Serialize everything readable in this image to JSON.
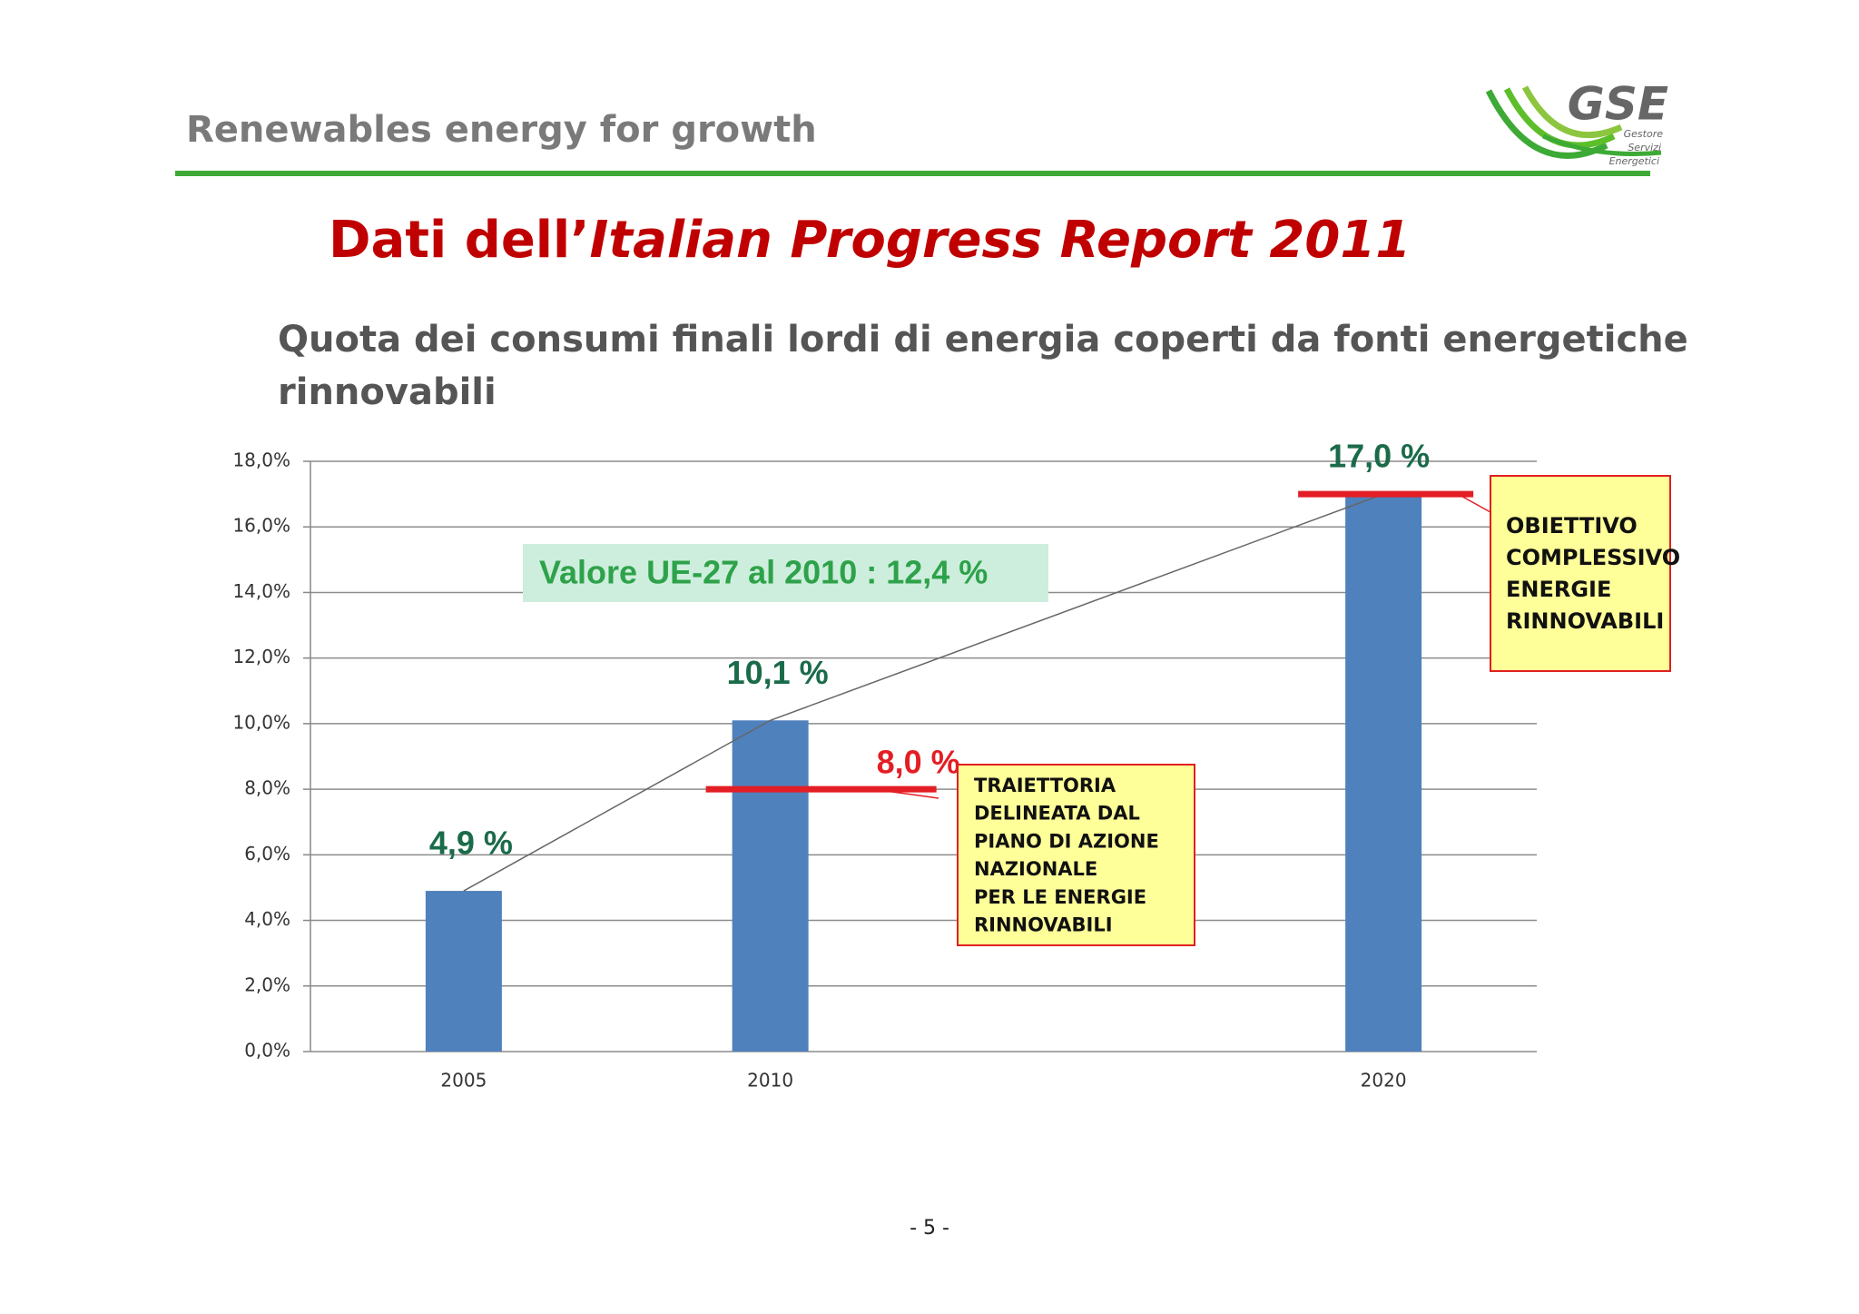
{
  "header": {
    "title": "Renewables energy for growth"
  },
  "logo": {
    "name": "GSE",
    "lines": [
      "Gestore",
      "Servizi",
      "Energetici"
    ]
  },
  "slide_title": {
    "plain": "Dati dell’",
    "italic": "Italian Progress Report 2011"
  },
  "chart_data": {
    "type": "bar",
    "title_lines": [
      "Quota dei consumi finali lordi di energia coperti da fonti energetiche",
      "rinnovabili"
    ],
    "x": [
      2005,
      2010,
      2020
    ],
    "values": [
      4.9,
      10.1,
      17.0
    ],
    "value_labels": [
      "4,9 %",
      "10,1 %",
      null
    ],
    "color": "#4f81bd",
    "line_color": "#666666",
    "xlim": [
      2002.5,
      2022.5
    ],
    "xticks": [
      2005,
      2010,
      2020
    ],
    "ylim": [
      0,
      18
    ],
    "yticks": [
      {
        "value": 0,
        "label": "0,0%"
      },
      {
        "value": 2,
        "label": "2,0%"
      },
      {
        "value": 4,
        "label": "4,0%"
      },
      {
        "value": 6,
        "label": "6,0%"
      },
      {
        "value": 8,
        "label": "8,0%"
      },
      {
        "value": 10,
        "label": "10,0%"
      },
      {
        "value": 12,
        "label": "12,0%"
      },
      {
        "value": 14,
        "label": "14,0%"
      },
      {
        "value": 16,
        "label": "16,0%"
      },
      {
        "value": 18,
        "label": "18,0%"
      }
    ],
    "grid": true,
    "annotation": {
      "text": "Valore UE-27 al 2010 : 12,4 %"
    },
    "targets": [
      {
        "x": 2010,
        "value": 8.0,
        "label": "8,0 %",
        "label_color": "#e31e24",
        "color": "#e31e24",
        "note": [
          "TRAIETTORIA",
          "DELINEATA DAL",
          "PIANO DI AZIONE",
          "NAZIONALE",
          "PER LE ENERGIE",
          "RINNOVABILI"
        ]
      },
      {
        "x": 2020,
        "value": 17.0,
        "label": "17,0 %",
        "label_color": "#1a6b4a",
        "color": "#e31e24",
        "note": [
          "OBIETTIVO",
          "COMPLESSIVO",
          "ENERGIE",
          "RINNOVABILI"
        ]
      }
    ]
  },
  "footer": {
    "page": "- 5 -"
  }
}
